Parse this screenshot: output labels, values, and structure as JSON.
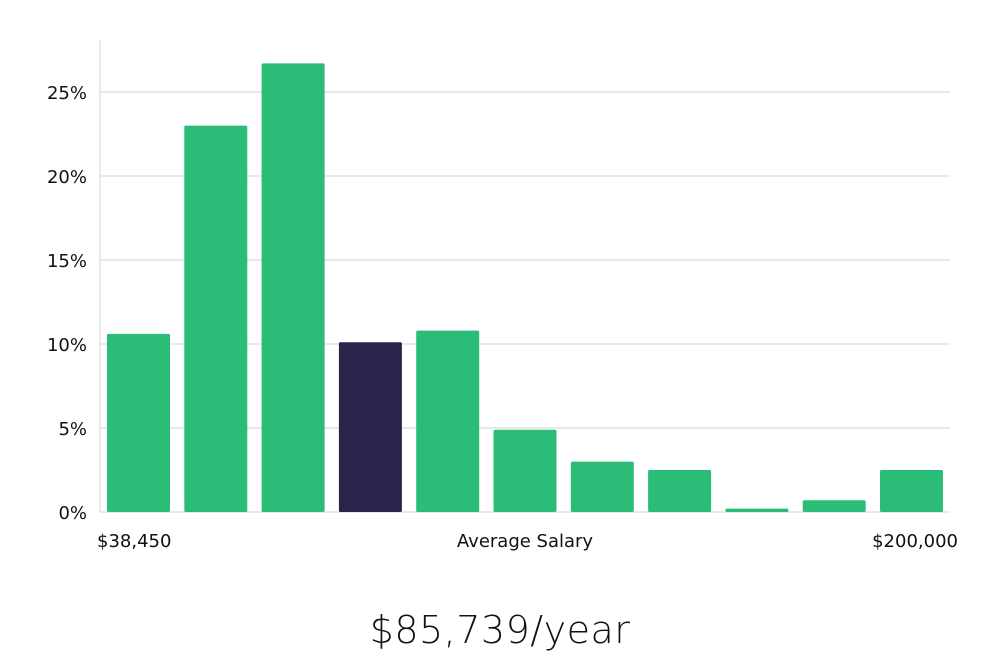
{
  "headline": "$85,739/year",
  "colors": {
    "bar": "#2bbd78",
    "highlight_bar": "#28244a",
    "grid": "#e2e2e2"
  },
  "chart_data": {
    "type": "bar",
    "xlabel": "Average Salary",
    "x_range_labels": {
      "min": "$38,450",
      "max": "$200,000"
    },
    "ylim": [
      0,
      28
    ],
    "yticks": [
      0,
      5,
      10,
      15,
      20,
      25
    ],
    "ytick_labels": [
      "0%",
      "5%",
      "10%",
      "15%",
      "20%",
      "25%"
    ],
    "grid": true,
    "values": [
      10.6,
      23.0,
      26.7,
      10.1,
      10.8,
      4.9,
      3.0,
      2.5,
      0.2,
      0.7,
      2.5
    ],
    "highlight_index": 3
  }
}
